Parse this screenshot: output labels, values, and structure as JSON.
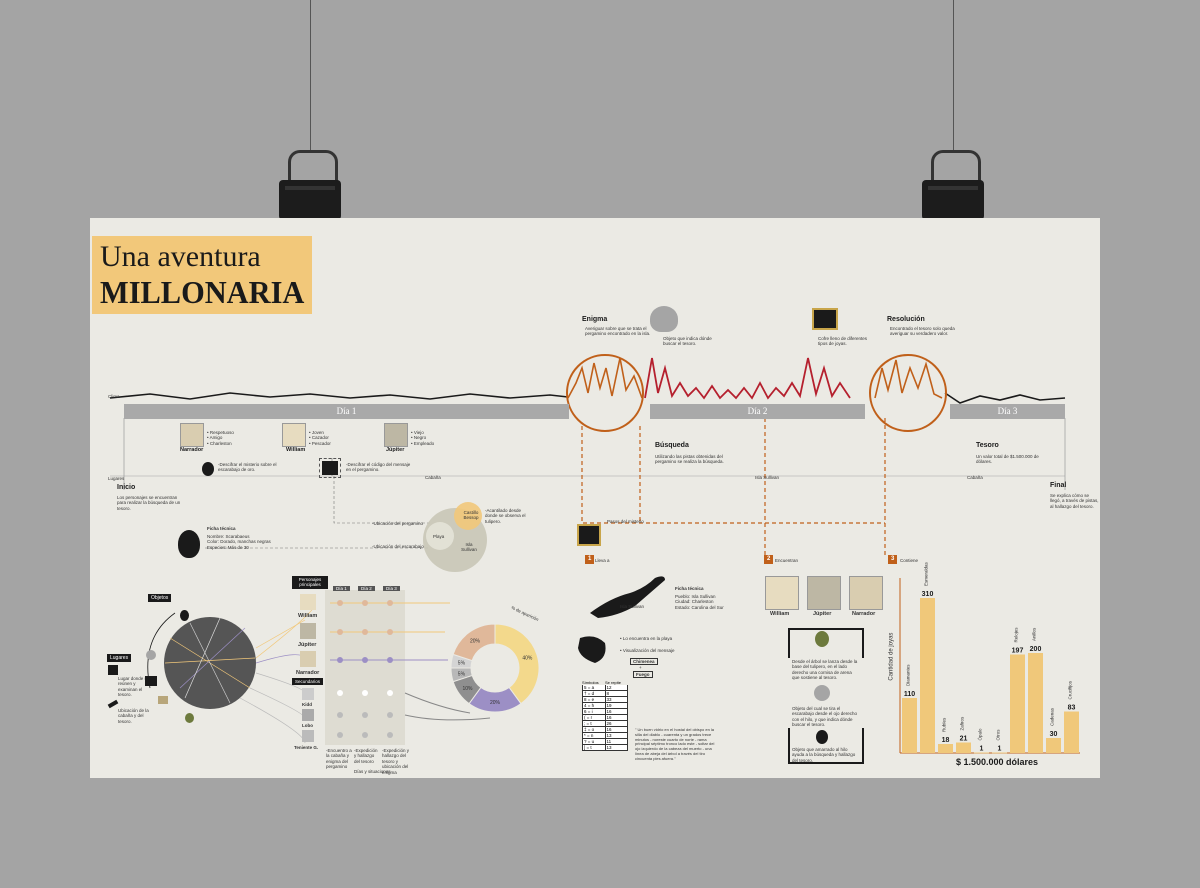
{
  "title": {
    "line1": "Una aventura",
    "line2": "MILLONARIA"
  },
  "timeline": {
    "row_labels": [
      "Clima",
      "Lugares"
    ],
    "days": [
      "Día 1",
      "Día 2",
      "Día 3"
    ],
    "places": [
      "Cabaña",
      "Isla Sullivan",
      "Cabaña"
    ]
  },
  "events": {
    "inicio": {
      "label": "Inicio",
      "desc": "Los personajes se encuentran para realizar la búsqueda de un tesoro."
    },
    "enigma": {
      "label": "Enigma",
      "desc": "Averiguar sobre que se trata el pergamino encontrado en la isla."
    },
    "busqueda": {
      "label": "Búsqueda",
      "desc": "Utilizando las pistas obtenidas del pergamino se realiza la búsqueda."
    },
    "resolucion": {
      "label": "Resolución",
      "desc": "Encontrado el tesoro solo queda averiguar su verdadero valor."
    },
    "tesoro": {
      "label": "Tesoro",
      "desc": "Un valor total de $1.500.000 de dólares."
    },
    "final": {
      "label": "Final",
      "desc": "Se explica cómo se llegó, a través de pistas, al hallazgo del tesoro."
    },
    "skull_note": "Objeto que indica dónde buscar el tesoro.",
    "chest_note": "Cofre lleno de diferentes tipos de joyas."
  },
  "characters": {
    "main": [
      {
        "name": "Narrador",
        "traits": "• Respetuoso\n• Amigo\n• Charleston"
      },
      {
        "name": "William",
        "traits": "• Joven\n• Cazador\n• Pescador"
      },
      {
        "name": "Júpiter",
        "traits": "• Viejo\n• Negro\n• Empleado"
      }
    ]
  },
  "notes": {
    "descifrar1": "-Descifrar el misterio sobre el escarabajo de oro.",
    "descifrar2": "-Descifrar el código del mensaje en el pergamino.",
    "ubic_pergamino": "-Ubicación del pergamino",
    "ubic_escarabajo": "-Ubicación del escarabajo",
    "acantilado": "-Acantilado desde donde se observa el tulipero.",
    "ficha_tecnica": "Ficha técnica",
    "ficha_body": "Nombre: Scarabaeus\nColor: Dorado, manchas negras\nEspecies: Más de 30",
    "places_circle": [
      "Castillo Bessop",
      "Playa",
      "Isla Sullivan"
    ]
  },
  "relations": {
    "objetos": "Objetos",
    "lugares": "Lugares",
    "personajes_principales": "Personajes principales",
    "secundarios": "Secundarios",
    "day_headers": [
      "Día 1",
      "Día 2",
      "Día 3"
    ],
    "principal_names": [
      "William",
      "Júpiter",
      "Narrador"
    ],
    "secondary_names": [
      "Kidd",
      "Lobo",
      "Teniente G."
    ],
    "lugar_note1": "Lugar donde se reúnen y examinan el tesoro.",
    "lugar_note2": "Ubicación de la cabaña y del tesoro.",
    "bottom_notes": [
      "-Encuentro a la cabaña y enigma del pergamino",
      "-Expedición y hallazgo del tesoro",
      "-Expedición y hallazgo del tesoro y ubicación del enigma"
    ],
    "bottom_sub": "Días y situaciones",
    "donut_label": "% de aparición"
  },
  "donut_chart": {
    "slices": [
      {
        "label": "40%",
        "value": 40,
        "color": "#f3d98c"
      },
      {
        "label": "20%",
        "value": 20,
        "color": "#9c8fc5"
      },
      {
        "label": "10%",
        "value": 10,
        "color": "#8f8f8f"
      },
      {
        "label": "5%",
        "value": 5,
        "color": "#b8b8b8"
      },
      {
        "label": "5%",
        "value": 5,
        "color": "#d4d4d4"
      },
      {
        "label": "20%",
        "value": 20,
        "color": "#e0b89a"
      }
    ]
  },
  "map": {
    "island": "Isla Sullivan",
    "ficha": "Ficha técnica",
    "ficha_body": "Pueblo: Isla Sullivan\nCiudad: Charleston\nEstado: Carolina del Sur",
    "note_playa": "• Lo encuentra en la playa",
    "note_mensaje": "• Visualización del mensaje",
    "chimenea": "Chimenea",
    "plus": "+",
    "fuego": "Fuego",
    "cipher_headers": [
      "Símbolos",
      "Se repite"
    ],
    "cipher_rows": [
      [
        "5 = a",
        "12"
      ],
      [
        "† = d",
        "8"
      ],
      [
        "8 = e",
        "33"
      ],
      [
        "4 = h",
        "19"
      ],
      [
        "6 = i",
        "16"
      ],
      [
        "( = r",
        "16"
      ],
      [
        "; = t",
        "26"
      ],
      [
        "‡ = o",
        "16"
      ],
      [
        "* = n",
        "13"
      ],
      [
        "? = u",
        "11"
      ],
      [
        "] = t",
        "13"
      ]
    ],
    "cipher_text": "\" Un buen vidrio en el hostal del obispo en la silla del diablo - cuarenta y un grados trece minutos - noreste cuarto de norte - rama principal séptimo tronco lado este - soltar del ojo izquierdo de la cabeza del muerto - una línea de abeja del árbol a través del tiro cincuenta pies afuera.\""
  },
  "steps": {
    "pasos_label": "Pasos del misterio",
    "step1": {
      "num": "1",
      "label": "Lleva a"
    },
    "step2": {
      "num": "2",
      "label": "Encuentran"
    },
    "step3": {
      "num": "3",
      "label": "Contiene"
    },
    "names": [
      "William",
      "Júpiter",
      "Narrador"
    ],
    "note_tree": "Desde el árbol se lanza desde la base del tulipero, en el lado derecho una cornisa de arena que sostiene al tesoro.",
    "note_skull": "Objeto del cual se tira el escarabajo desde el ojo derecho con el hilo, y que indica dónde buscar el tesoro.",
    "note_beetle": "Objeto que amarrado al hilo ayuda a la búsqueda y hallazgo del tesoro."
  },
  "chart_data": {
    "type": "bar",
    "ylabel": "Cantidad de joyas",
    "xlabel": "$ 1.500.000 dólares",
    "categories": [
      "Diamantes",
      "Esmeraldas",
      "Rubíes",
      "Zafiros",
      "Ópalo",
      "Otros",
      "Relojes",
      "Anillos",
      "Cadenas",
      "Crucifijos"
    ],
    "values": [
      110,
      310,
      18,
      21,
      1,
      1,
      197,
      200,
      30,
      83
    ],
    "ylim": [
      0,
      340
    ],
    "bar_color": "#f0c87a"
  }
}
